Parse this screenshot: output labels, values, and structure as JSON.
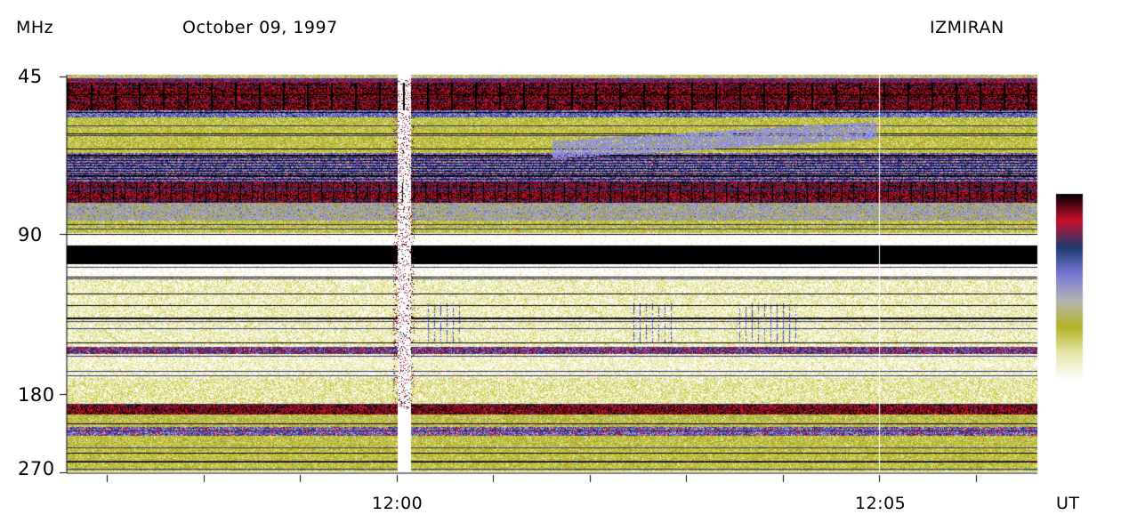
{
  "header": {
    "unit": "MHz",
    "date": "October 09, 1997",
    "station": "IZMIRAN"
  },
  "chart_data": {
    "type": "heatmap",
    "title": "October 09, 1997",
    "ylabel": "MHz",
    "xlabel": "UT",
    "y_ticks": [
      {
        "label": "45",
        "value": 45
      },
      {
        "label": "90",
        "value": 90
      },
      {
        "label": "180",
        "value": 180
      },
      {
        "label": "270",
        "value": 270
      }
    ],
    "x_ticks": [
      {
        "label": "12:00",
        "value": "12:00"
      },
      {
        "label": "12:05",
        "value": "12:05"
      }
    ],
    "colorbar": [
      "#000000",
      "#c8102e",
      "#1e3a6e",
      "#7878d8",
      "#b4b4b4",
      "#b4b428",
      "#e8e8b0",
      "#ffffff"
    ],
    "bands": [
      {
        "range": [
          45,
          56
        ],
        "level": "strong interference"
      },
      {
        "range": [
          56,
          70
        ],
        "level": "background"
      },
      {
        "range": [
          70,
          86
        ],
        "level": "strong interference"
      },
      {
        "range": [
          90,
          110
        ],
        "level": "saturated"
      },
      {
        "range": [
          110,
          180
        ],
        "level": "low"
      },
      {
        "range": [
          180,
          270
        ],
        "level": "background"
      }
    ],
    "events": [
      {
        "type": "slow drifting feature",
        "freq_range": [
          58,
          66
        ],
        "time_start": "12:01:45",
        "time_end": "12:05:00"
      }
    ]
  }
}
